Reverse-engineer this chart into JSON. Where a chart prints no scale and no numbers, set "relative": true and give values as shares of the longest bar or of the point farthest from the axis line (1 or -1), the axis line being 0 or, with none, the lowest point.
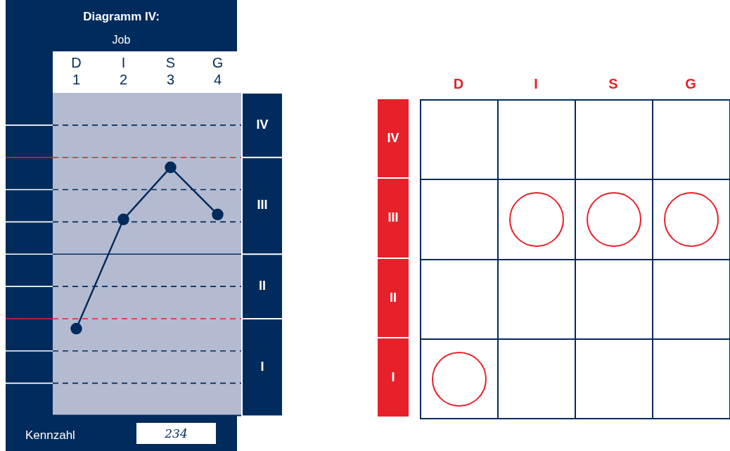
{
  "chart_data": [
    {
      "type": "line",
      "title": "Diagramm IV:",
      "subtitle": "Job",
      "relative": true,
      "categories": [
        "D\n1",
        "I\n2",
        "S\n3",
        "G\n4"
      ],
      "series": [
        {
          "color": "#002b5c",
          "values": [
            0.35,
            0.79,
            1,
            0.81
          ]
        }
      ],
      "marker": "circle",
      "line_style": "solid",
      "legend": false,
      "bands": [
        {
          "axis": "y",
          "from": 1.04,
          "to": 1.3,
          "label": "IV",
          "color": "#b4bbd1"
        },
        {
          "axis": "y",
          "from": 0.65,
          "to": 1.04,
          "label": "III",
          "color": "#b4bbd1"
        },
        {
          "axis": "y",
          "from": 0.39,
          "to": 0.65,
          "label": "II",
          "color": "#b4bbd1"
        },
        {
          "axis": "y",
          "from": 0,
          "to": 0.39,
          "label": "I",
          "color": "#b4bbd1"
        }
      ],
      "ref_lines": [
        {
          "axis": "y",
          "value": 0.13,
          "color": "#002b5c",
          "line_style": "dashed"
        },
        {
          "axis": "y",
          "value": 0.26,
          "color": "#002b5c",
          "line_style": "dashed"
        },
        {
          "axis": "y",
          "value": 0.39,
          "color": "#e8202a",
          "line_style": "dashed"
        },
        {
          "axis": "y",
          "value": 0.52,
          "color": "#002b5c",
          "line_style": "dashed"
        },
        {
          "axis": "y",
          "value": 0.65,
          "color": "#002b5c",
          "line_style": "solid"
        },
        {
          "axis": "y",
          "value": 0.78,
          "color": "#002b5c",
          "line_style": "dashed"
        },
        {
          "axis": "y",
          "value": 0.91,
          "color": "#002b5c",
          "line_style": "dashed"
        },
        {
          "axis": "y",
          "value": 1.04,
          "color": "#e8202a",
          "line_style": "dashed"
        },
        {
          "axis": "y",
          "value": 1.17,
          "color": "#002b5c",
          "line_style": "dashed"
        }
      ],
      "annotations": [
        "Kennzahl",
        "234"
      ]
    },
    {
      "type": "other",
      "categories": [
        "D",
        "I",
        "S",
        "G"
      ],
      "y_categories": [
        "IV",
        "III",
        "II",
        "I"
      ]
    }
  ]
}
